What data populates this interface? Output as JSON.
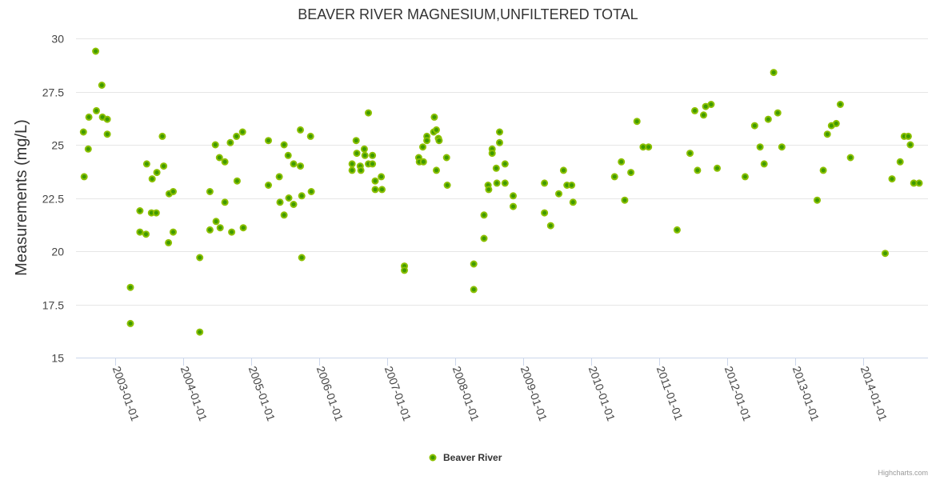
{
  "chart_data": {
    "type": "scatter",
    "title": "BEAVER RIVER MAGNESIUM,UNFILTERED TOTAL",
    "xlabel": "",
    "ylabel": "Measurements (mg/L)",
    "ylim": [
      15,
      30
    ],
    "xlim": [
      2002.42,
      2014.95
    ],
    "yticks": [
      "15",
      "17.5",
      "20",
      "22.5",
      "25",
      "27.5",
      "30"
    ],
    "ytick_values": [
      15,
      17.5,
      20,
      22.5,
      25,
      27.5,
      30
    ],
    "xticks": [
      "2003-01-01",
      "2004-01-01",
      "2005-01-01",
      "2006-01-01",
      "2007-01-01",
      "2008-01-01",
      "2009-01-01",
      "2010-01-01",
      "2011-01-01",
      "2012-01-01",
      "2013-01-01",
      "2014-01-01"
    ],
    "xtick_values": [
      2003,
      2004,
      2005,
      2006,
      2007,
      2008,
      2009,
      2010,
      2011,
      2012,
      2013,
      2014
    ],
    "grid": true,
    "legend_position": "bottom-center",
    "colors": {
      "point_fill": "#3f9a00",
      "point_stroke": "#8cc000"
    },
    "series": [
      {
        "name": "Beaver River",
        "points": [
          [
            2002.54,
            23.5
          ],
          [
            2002.53,
            25.6
          ],
          [
            2002.6,
            24.8
          ],
          [
            2002.61,
            26.3
          ],
          [
            2002.71,
            29.4
          ],
          [
            2002.72,
            26.6
          ],
          [
            2002.8,
            27.8
          ],
          [
            2002.81,
            26.3
          ],
          [
            2002.88,
            26.2
          ],
          [
            2002.88,
            25.5
          ],
          [
            2003.22,
            18.3
          ],
          [
            2003.22,
            16.6
          ],
          [
            2003.36,
            21.9
          ],
          [
            2003.36,
            20.9
          ],
          [
            2003.45,
            20.8
          ],
          [
            2003.46,
            24.1
          ],
          [
            2003.53,
            21.8
          ],
          [
            2003.54,
            23.4
          ],
          [
            2003.6,
            21.8
          ],
          [
            2003.61,
            23.7
          ],
          [
            2003.69,
            25.4
          ],
          [
            2003.71,
            24.0
          ],
          [
            2003.78,
            20.4
          ],
          [
            2003.79,
            22.7
          ],
          [
            2003.85,
            22.8
          ],
          [
            2003.85,
            20.9
          ],
          [
            2004.24,
            19.7
          ],
          [
            2004.24,
            16.2
          ],
          [
            2004.39,
            22.8
          ],
          [
            2004.39,
            21.0
          ],
          [
            2004.47,
            25.0
          ],
          [
            2004.48,
            21.4
          ],
          [
            2004.53,
            24.4
          ],
          [
            2004.54,
            21.1
          ],
          [
            2004.61,
            24.2
          ],
          [
            2004.61,
            22.3
          ],
          [
            2004.69,
            25.1
          ],
          [
            2004.71,
            20.9
          ],
          [
            2004.78,
            25.4
          ],
          [
            2004.79,
            23.3
          ],
          [
            2004.87,
            25.6
          ],
          [
            2004.88,
            21.1
          ],
          [
            2005.25,
            23.1
          ],
          [
            2005.25,
            25.2
          ],
          [
            2005.41,
            23.5
          ],
          [
            2005.42,
            22.3
          ],
          [
            2005.48,
            25.0
          ],
          [
            2005.48,
            21.7
          ],
          [
            2005.54,
            24.5
          ],
          [
            2005.55,
            22.5
          ],
          [
            2005.62,
            24.1
          ],
          [
            2005.62,
            22.2
          ],
          [
            2005.72,
            25.7
          ],
          [
            2005.72,
            24.0
          ],
          [
            2005.74,
            19.7
          ],
          [
            2005.74,
            22.6
          ],
          [
            2005.87,
            25.4
          ],
          [
            2005.88,
            22.8
          ],
          [
            2006.48,
            24.1
          ],
          [
            2006.48,
            23.8
          ],
          [
            2006.54,
            25.2
          ],
          [
            2006.55,
            24.6
          ],
          [
            2006.6,
            24.0
          ],
          [
            2006.61,
            23.8
          ],
          [
            2006.66,
            24.8
          ],
          [
            2006.67,
            24.5
          ],
          [
            2006.72,
            26.5
          ],
          [
            2006.72,
            24.1
          ],
          [
            2006.78,
            24.5
          ],
          [
            2006.78,
            24.1
          ],
          [
            2006.82,
            23.3
          ],
          [
            2006.82,
            22.9
          ],
          [
            2006.91,
            23.5
          ],
          [
            2006.92,
            22.9
          ],
          [
            2007.25,
            19.3
          ],
          [
            2007.25,
            19.1
          ],
          [
            2007.46,
            24.4
          ],
          [
            2007.47,
            24.2
          ],
          [
            2007.52,
            24.9
          ],
          [
            2007.53,
            24.2
          ],
          [
            2007.58,
            25.4
          ],
          [
            2007.58,
            25.2
          ],
          [
            2007.68,
            25.6
          ],
          [
            2007.69,
            26.3
          ],
          [
            2007.72,
            25.7
          ],
          [
            2007.72,
            23.8
          ],
          [
            2007.75,
            25.3
          ],
          [
            2007.76,
            25.2
          ],
          [
            2007.87,
            24.4
          ],
          [
            2007.88,
            23.1
          ],
          [
            2008.27,
            19.4
          ],
          [
            2008.27,
            18.2
          ],
          [
            2008.42,
            21.7
          ],
          [
            2008.42,
            20.6
          ],
          [
            2008.48,
            23.1
          ],
          [
            2008.49,
            22.9
          ],
          [
            2008.54,
            24.8
          ],
          [
            2008.54,
            24.6
          ],
          [
            2008.6,
            23.9
          ],
          [
            2008.61,
            23.2
          ],
          [
            2008.65,
            25.6
          ],
          [
            2008.65,
            25.1
          ],
          [
            2008.73,
            24.1
          ],
          [
            2008.73,
            23.2
          ],
          [
            2008.85,
            22.6
          ],
          [
            2008.85,
            22.1
          ],
          [
            2009.31,
            23.2
          ],
          [
            2009.31,
            21.8
          ],
          [
            2009.4,
            21.2
          ],
          [
            2009.52,
            22.7
          ],
          [
            2009.59,
            23.8
          ],
          [
            2009.64,
            23.1
          ],
          [
            2009.71,
            23.1
          ],
          [
            2009.73,
            22.3
          ],
          [
            2010.34,
            23.5
          ],
          [
            2010.44,
            24.2
          ],
          [
            2010.49,
            22.4
          ],
          [
            2010.58,
            23.7
          ],
          [
            2010.67,
            26.1
          ],
          [
            2010.76,
            24.9
          ],
          [
            2010.84,
            24.9
          ],
          [
            2011.26,
            21.0
          ],
          [
            2011.45,
            24.6
          ],
          [
            2011.52,
            26.6
          ],
          [
            2011.56,
            23.8
          ],
          [
            2011.65,
            26.4
          ],
          [
            2011.68,
            26.8
          ],
          [
            2011.76,
            26.9
          ],
          [
            2011.85,
            23.9
          ],
          [
            2012.26,
            23.5
          ],
          [
            2012.4,
            25.9
          ],
          [
            2012.48,
            24.9
          ],
          [
            2012.54,
            24.1
          ],
          [
            2012.6,
            26.2
          ],
          [
            2012.68,
            28.4
          ],
          [
            2012.74,
            26.5
          ],
          [
            2012.8,
            24.9
          ],
          [
            2013.32,
            22.4
          ],
          [
            2013.41,
            23.8
          ],
          [
            2013.47,
            25.5
          ],
          [
            2013.53,
            25.9
          ],
          [
            2013.6,
            26.0
          ],
          [
            2013.66,
            26.9
          ],
          [
            2013.81,
            24.4
          ],
          [
            2014.32,
            19.9
          ],
          [
            2014.42,
            23.4
          ],
          [
            2014.54,
            24.2
          ],
          [
            2014.6,
            25.4
          ],
          [
            2014.66,
            25.4
          ],
          [
            2014.69,
            25.0
          ],
          [
            2014.74,
            23.2
          ],
          [
            2014.82,
            23.2
          ]
        ]
      }
    ]
  },
  "credits": "Highcharts.com"
}
